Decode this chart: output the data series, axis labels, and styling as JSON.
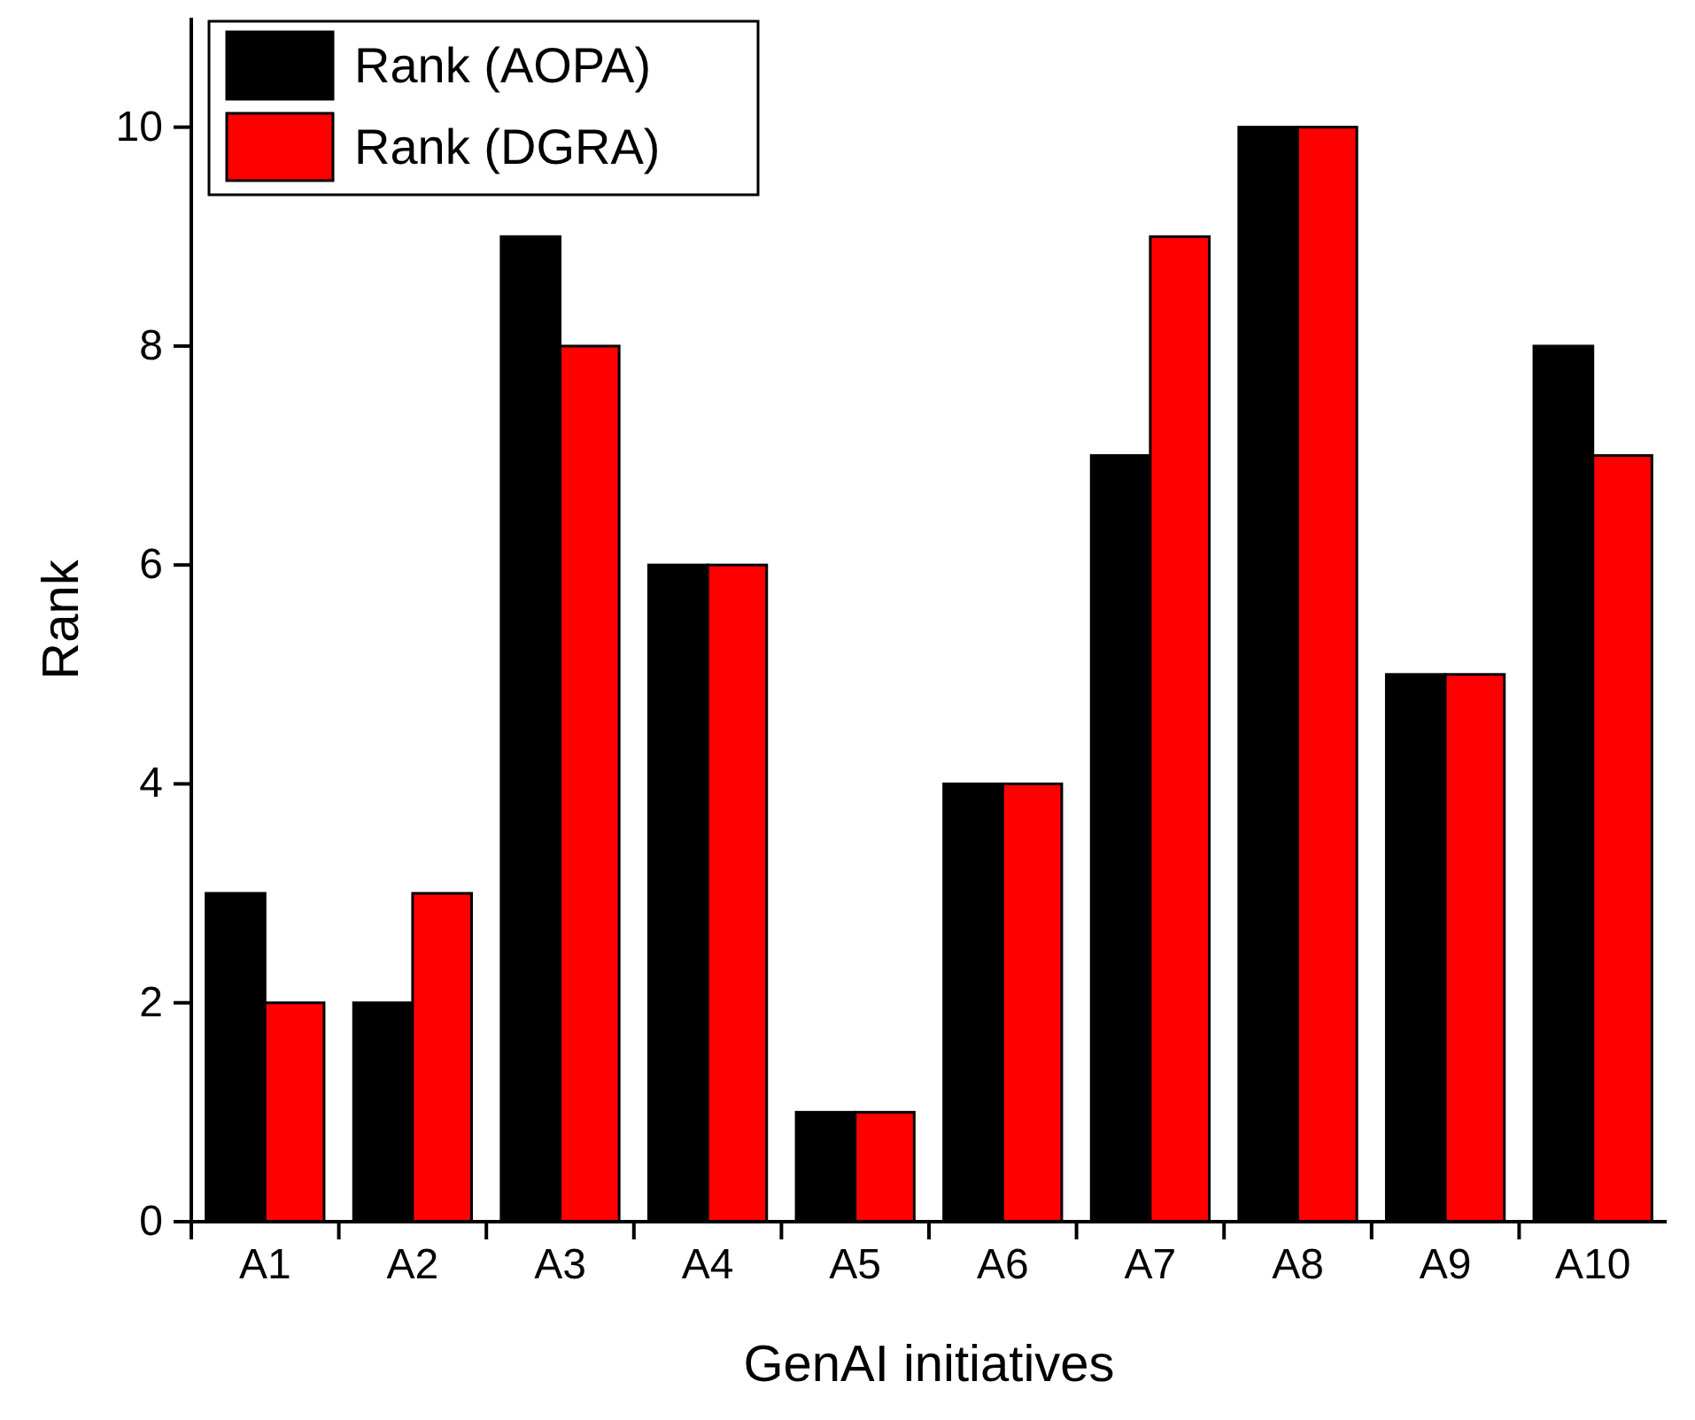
{
  "chart_data": {
    "type": "bar",
    "xlabel": "GenAI initiatives",
    "ylabel": "Rank",
    "categories": [
      "A1",
      "A2",
      "A3",
      "A4",
      "A5",
      "A6",
      "A7",
      "A8",
      "A9",
      "A10"
    ],
    "series": [
      {
        "name": "Rank (AOPA)",
        "color": "#000000",
        "values": [
          3,
          2,
          9,
          6,
          1,
          4,
          7,
          10,
          5,
          8
        ]
      },
      {
        "name": "Rank (DGRA)",
        "color": "#ff0000",
        "values": [
          2,
          3,
          8,
          6,
          1,
          4,
          9,
          10,
          5,
          7
        ]
      }
    ],
    "ylim": [
      0,
      11
    ],
    "yticks": [
      0,
      2,
      4,
      6,
      8,
      10
    ],
    "grid": false,
    "legend": "top left"
  }
}
